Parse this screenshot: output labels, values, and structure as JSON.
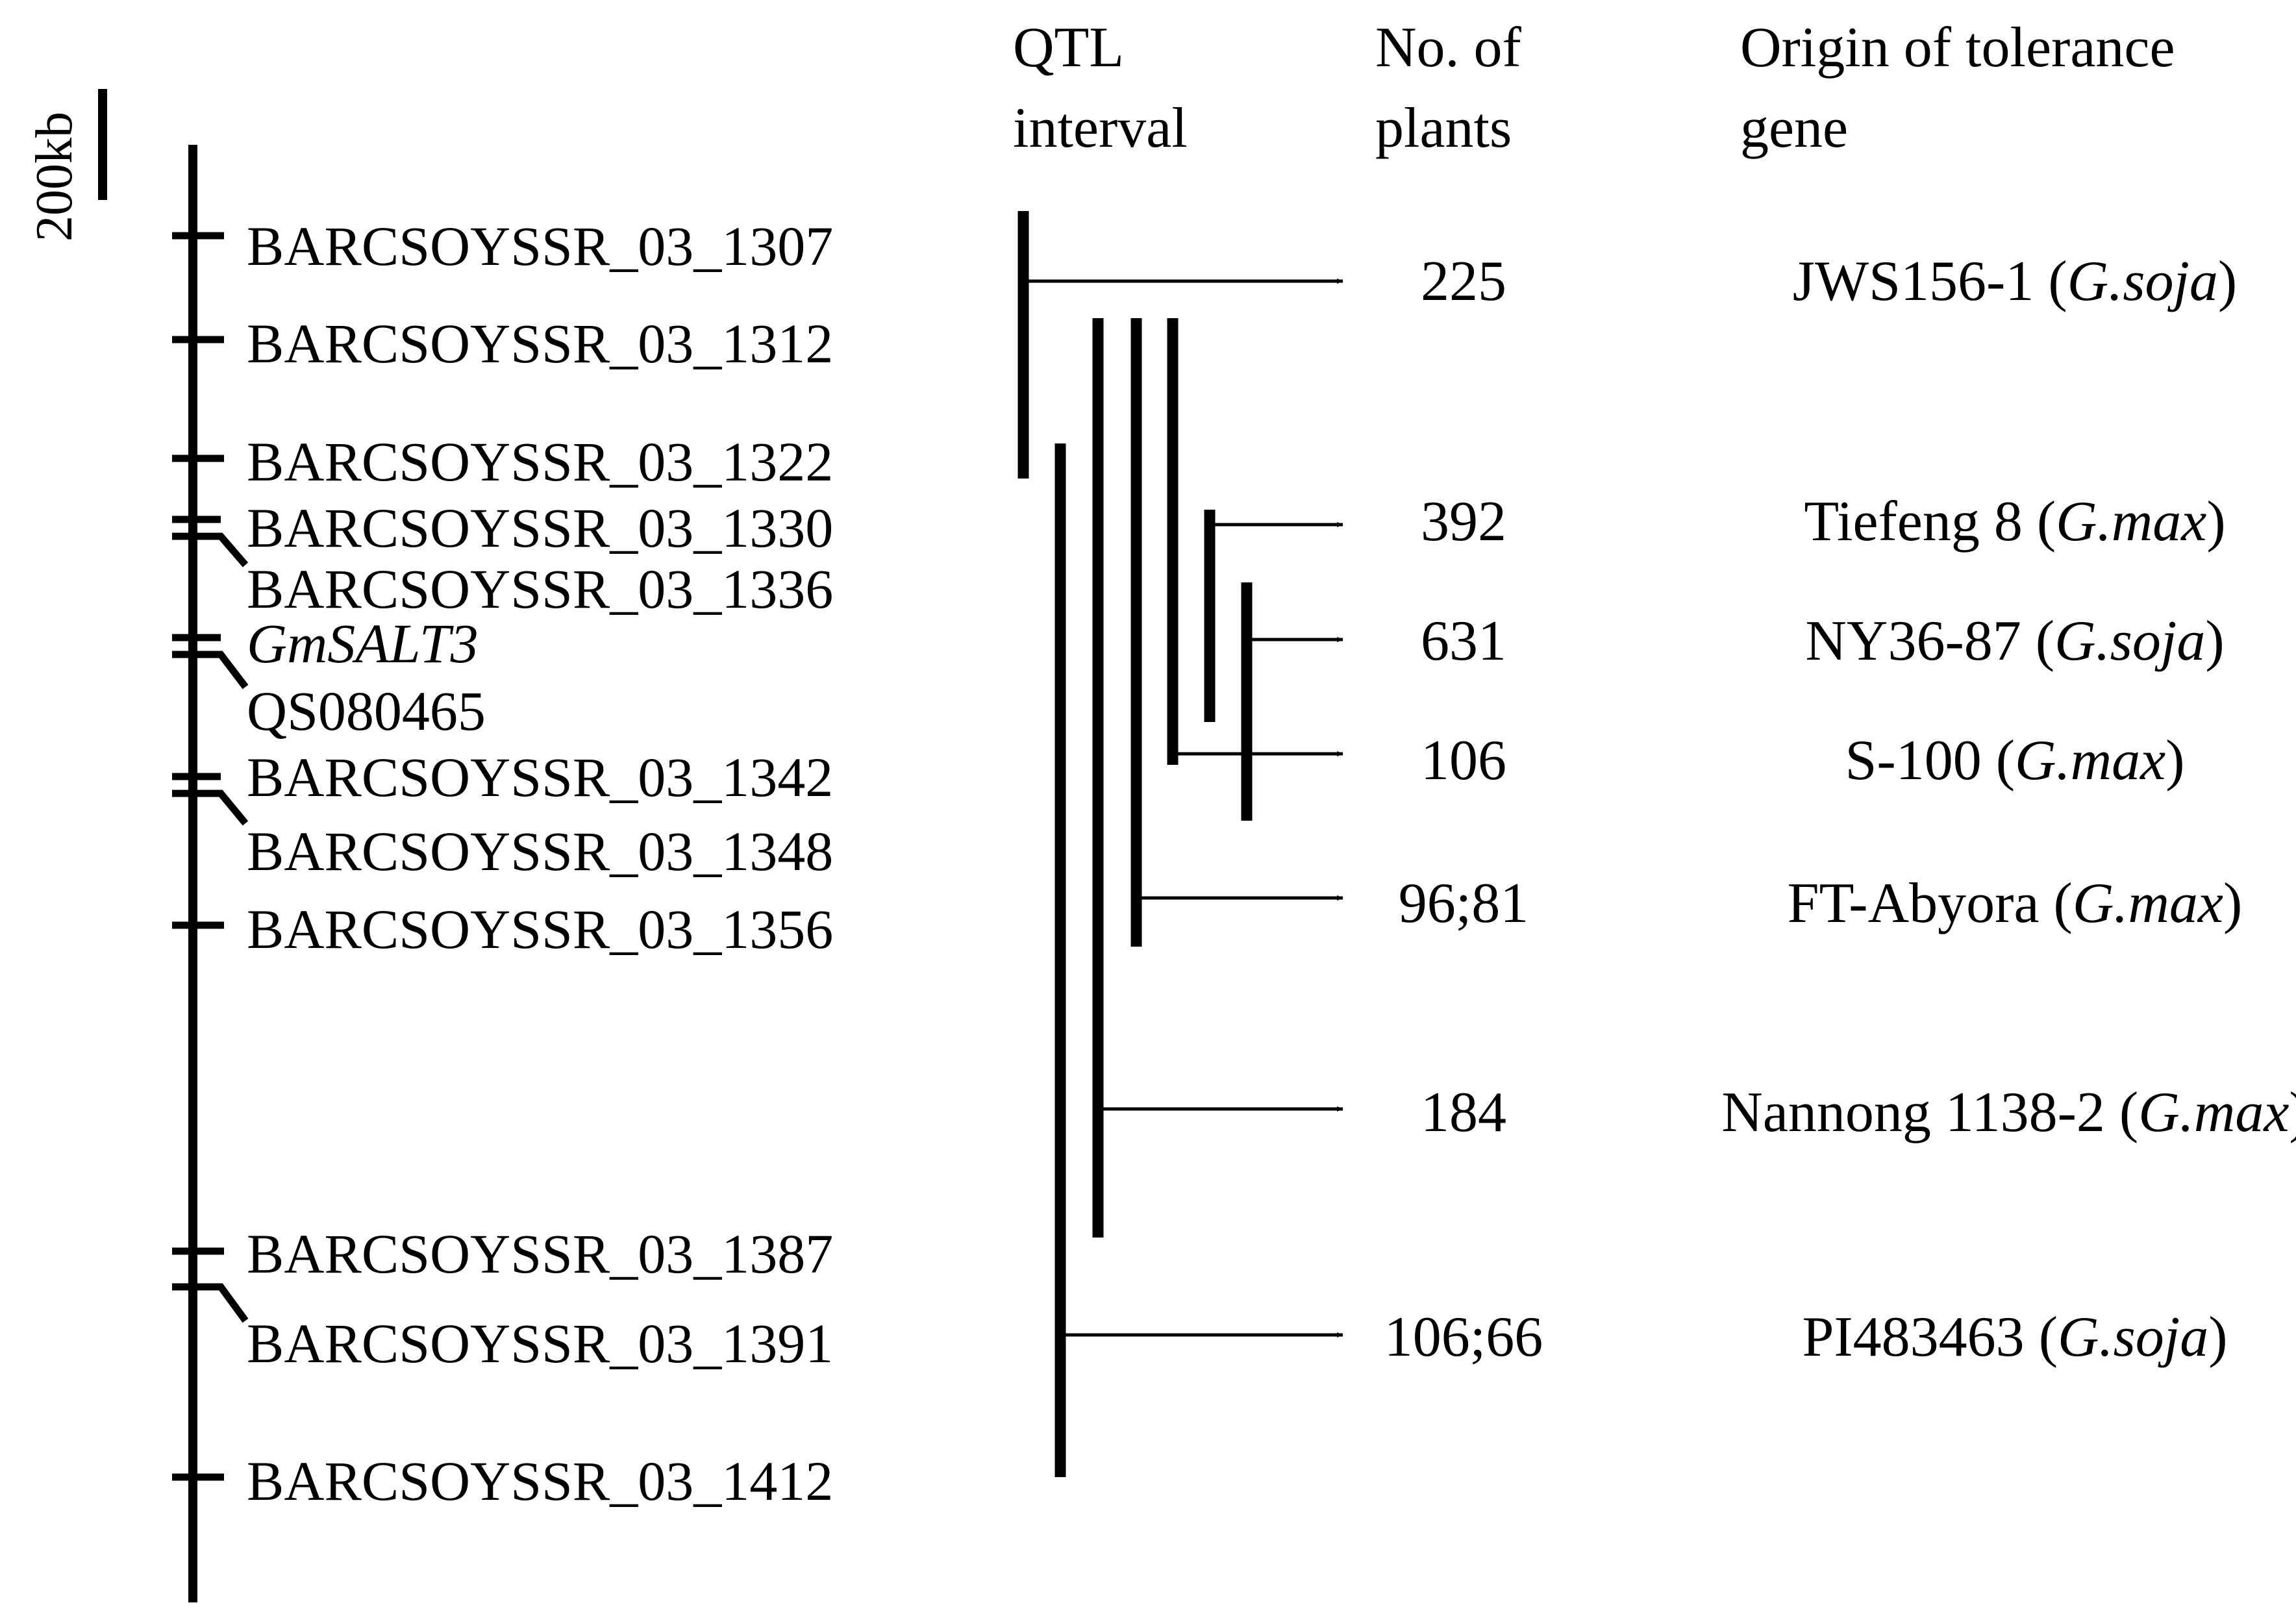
{
  "scale_bar": {
    "label": "200kb"
  },
  "headers": {
    "qtl_interval": [
      "QTL",
      "interval"
    ],
    "no_of_plants": [
      "No. of",
      "plants"
    ],
    "origin": [
      "Origin of tolerance",
      "gene"
    ]
  },
  "markers": [
    {
      "name": "BARCSOYSSR_03_1307",
      "italic": false
    },
    {
      "name": "BARCSOYSSR_03_1312",
      "italic": false
    },
    {
      "name": "BARCSOYSSR_03_1322",
      "italic": false
    },
    {
      "name": "BARCSOYSSR_03_1330",
      "italic": false
    },
    {
      "name": "BARCSOYSSR_03_1336",
      "italic": false
    },
    {
      "name": "GmSALT3",
      "italic": true
    },
    {
      "name": "QS080465",
      "italic": false
    },
    {
      "name": "BARCSOYSSR_03_1342",
      "italic": false
    },
    {
      "name": "BARCSOYSSR_03_1348",
      "italic": false
    },
    {
      "name": "BARCSOYSSR_03_1356",
      "italic": false
    },
    {
      "name": "BARCSOYSSR_03_1387",
      "italic": false
    },
    {
      "name": "BARCSOYSSR_03_1391",
      "italic": false
    },
    {
      "name": "BARCSOYSSR_03_1412",
      "italic": false
    }
  ],
  "qtls": [
    {
      "plants": "225",
      "origin_name": "JWS156-1",
      "species": "G.soja"
    },
    {
      "plants": "392",
      "origin_name": "Tiefeng 8",
      "species": "G.max"
    },
    {
      "plants": "631",
      "origin_name": "NY36-87",
      "species": "G.soja"
    },
    {
      "plants": "106",
      "origin_name": "S-100",
      "species": "G.max"
    },
    {
      "plants": "96;81",
      "origin_name": "FT-Abyora",
      "species": "G.max"
    },
    {
      "plants": "184",
      "origin_name": "Nannong 1138-2",
      "species": "G.max"
    },
    {
      "plants": "106;66",
      "origin_name": "PI483463",
      "species": "G.soja"
    }
  ],
  "colors": {
    "line": "#000000",
    "text": "#000000",
    "origin_text": "#3a3a3a",
    "background": "#ffffff"
  }
}
